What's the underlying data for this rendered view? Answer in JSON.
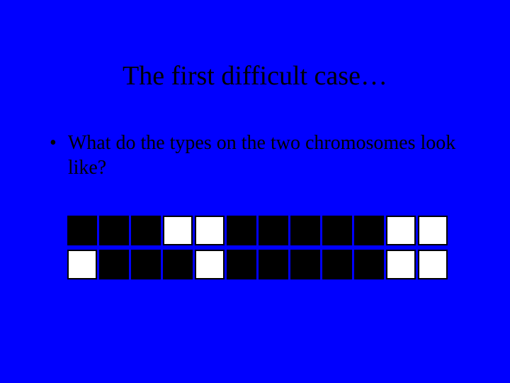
{
  "slide": {
    "title": "The first difficult case…",
    "background_color": "#0000ff",
    "text_color": "#000000",
    "title_fontsize": 38,
    "body_fontsize": 28,
    "font_family": "Times New Roman"
  },
  "bullet": {
    "marker": "•",
    "text": "What do the types on the two chromosomes look like?"
  },
  "chromosomes": {
    "cell_size": 42,
    "cell_gap": 3,
    "border_color": "#000000",
    "filled_color": "#000000",
    "empty_color": "#ffffff",
    "rows": [
      {
        "pattern": [
          1,
          1,
          1,
          0,
          0,
          1,
          1,
          1,
          1,
          1,
          0,
          0
        ]
      },
      {
        "pattern": [
          0,
          1,
          1,
          1,
          0,
          1,
          1,
          1,
          1,
          1,
          0,
          0
        ]
      }
    ]
  }
}
